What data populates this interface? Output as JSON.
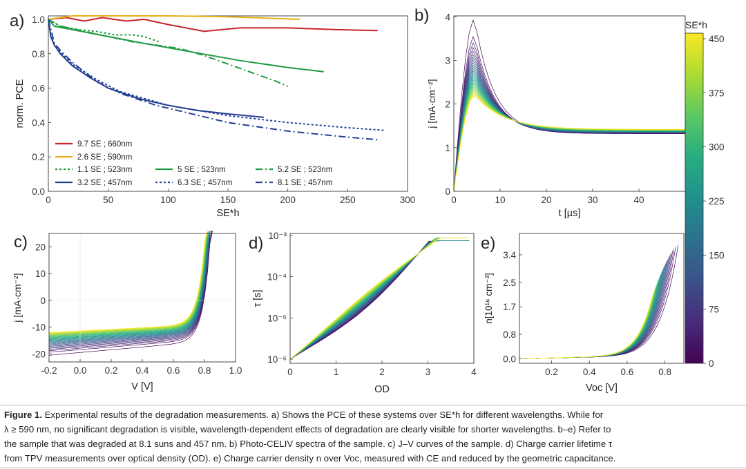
{
  "colors": {
    "red": "#c8232c",
    "yellow": "#e7b016",
    "green": "#1d9b40",
    "blue": "#233f93",
    "colormap": [
      "#440154",
      "#472c7a",
      "#3b518b",
      "#2c718e",
      "#21908d",
      "#27ad81",
      "#5cc863",
      "#aadc32",
      "#fde725"
    ]
  },
  "panel_letters": [
    "a)",
    "b)",
    "c)",
    "d)",
    "e)"
  ],
  "chart_data": [
    {
      "panel": "a",
      "type": "line",
      "xlabel": "SE*h",
      "ylabel": "norm. PCE",
      "xlim": [
        0,
        300
      ],
      "ylim": [
        0,
        1.0
      ],
      "xticks": [
        "0",
        "50",
        "100",
        "150",
        "200",
        "250",
        "300"
      ],
      "yticks": [
        "0.0",
        "0.2",
        "0.4",
        "0.6",
        "0.8",
        "1.0"
      ],
      "series": [
        {
          "name": "9.7 SE ; 660nm",
          "color": "red",
          "style": "solid",
          "x": [
            0,
            15,
            30,
            45,
            65,
            80,
            100,
            130,
            160,
            200,
            240,
            275
          ],
          "y": [
            1.0,
            1.01,
            0.99,
            1.01,
            0.99,
            1.0,
            0.97,
            0.93,
            0.95,
            0.95,
            0.94,
            0.935
          ]
        },
        {
          "name": "2.6 SE ; 590nm",
          "color": "yellow",
          "style": "solid",
          "x": [
            0,
            20,
            50,
            100,
            150,
            210
          ],
          "y": [
            1.0,
            1.02,
            1.02,
            1.02,
            1.015,
            1.0
          ]
        },
        {
          "name": "1.1 SE ; 523nm",
          "color": "green",
          "style": "dot",
          "x": [
            0,
            10,
            25,
            40,
            55,
            70,
            80,
            92
          ],
          "y": [
            1.0,
            0.96,
            0.94,
            0.93,
            0.91,
            0.91,
            0.9,
            0.87
          ]
        },
        {
          "name": "5 SE ; 523nm",
          "color": "green",
          "style": "solid",
          "x": [
            0,
            5,
            20,
            50,
            80,
            120,
            160,
            200,
            230
          ],
          "y": [
            1.0,
            0.96,
            0.94,
            0.9,
            0.86,
            0.81,
            0.76,
            0.72,
            0.695
          ]
        },
        {
          "name": "5.2 SE ; 523nm",
          "color": "green",
          "style": "dashdot",
          "x": [
            0,
            10,
            30,
            50,
            70,
            90,
            110,
            130,
            150,
            170,
            190,
            200
          ],
          "y": [
            1.0,
            0.96,
            0.93,
            0.9,
            0.87,
            0.85,
            0.83,
            0.79,
            0.74,
            0.69,
            0.64,
            0.61
          ]
        },
        {
          "name": "3.2 SE ; 457nm",
          "color": "blue",
          "style": "solid",
          "x": [
            0,
            2,
            5,
            10,
            20,
            35,
            50,
            75,
            100,
            125,
            150,
            180
          ],
          "y": [
            1.0,
            0.9,
            0.85,
            0.8,
            0.73,
            0.66,
            0.6,
            0.54,
            0.5,
            0.47,
            0.45,
            0.43
          ]
        },
        {
          "name": "6.3 SE ; 457nm",
          "color": "blue",
          "style": "dot",
          "x": [
            0,
            2,
            5,
            10,
            20,
            40,
            60,
            100,
            150,
            200,
            250,
            280
          ],
          "y": [
            1.0,
            0.9,
            0.85,
            0.81,
            0.74,
            0.65,
            0.58,
            0.5,
            0.44,
            0.4,
            0.37,
            0.355
          ]
        },
        {
          "name": "8.1 SE ; 457nm",
          "color": "blue",
          "style": "dashdot",
          "x": [
            0,
            5,
            10,
            20,
            40,
            60,
            90,
            120,
            150,
            200,
            250,
            275
          ],
          "y": [
            1.0,
            0.86,
            0.82,
            0.75,
            0.64,
            0.57,
            0.5,
            0.45,
            0.4,
            0.35,
            0.315,
            0.3
          ]
        }
      ]
    },
    {
      "panel": "b",
      "type": "line",
      "xlabel": "t [µs]",
      "ylabel": "j [mA·cm⁻²]",
      "xlim": [
        0,
        50
      ],
      "ylim": [
        0,
        4
      ],
      "xticks": [
        "0",
        "10",
        "20",
        "30",
        "40"
      ],
      "yticks": [
        "0",
        "1",
        "2",
        "3",
        "4"
      ],
      "family": {
        "se_range": [
          0,
          450
        ],
        "count": 30,
        "peak_time": 4.5,
        "peak_range": [
          3.95,
          2.2
        ],
        "tail_range": [
          1.32,
          1.42
        ]
      },
      "colorbar": {
        "label": "SE*h",
        "ticks": [
          "0",
          "75",
          "150",
          "225",
          "300",
          "375",
          "450"
        ],
        "range": [
          0,
          450
        ]
      }
    },
    {
      "panel": "c",
      "type": "line",
      "xlabel": "V [V]",
      "ylabel": "j [mA·cm⁻²]",
      "xlim": [
        -0.2,
        1.0
      ],
      "ylim": [
        -23,
        25
      ],
      "xticks": [
        "-0.2",
        "0.0",
        "0.2",
        "0.4",
        "0.6",
        "0.8",
        "1.0"
      ],
      "yticks": [
        "-20",
        "-10",
        "0",
        "10",
        "20"
      ],
      "family": {
        "count": 30,
        "jsc_range": [
          -20.5,
          -12
        ],
        "voc_range": [
          0.77,
          0.72
        ]
      }
    },
    {
      "panel": "d",
      "type": "line",
      "xlabel": "OD",
      "ylabel": "τ [s]",
      "yscale": "log",
      "xlim": [
        0,
        4
      ],
      "ylim": [
        -6.1,
        -2.95
      ],
      "xticks": [
        "0",
        "1",
        "2",
        "3",
        "4"
      ],
      "yticks": [
        "10⁻⁶",
        "10⁻⁵",
        "10⁻⁴",
        "10⁻³"
      ],
      "family": {
        "count": 30,
        "start_log_tau": -6.0,
        "end_log_tau": -3.08,
        "od_end_range": [
          3.9,
          3.85
        ]
      }
    },
    {
      "panel": "e",
      "type": "line",
      "xlabel": "Voc [V]",
      "ylabel": "n[10¹⁶ cm⁻³]",
      "xlim": [
        0.03,
        0.9
      ],
      "ylim": [
        -0.15,
        4.1
      ],
      "xticks": [
        "0.2",
        "0.4",
        "0.6",
        "0.8"
      ],
      "yticks": [
        "0.0",
        "0.8",
        "1.7",
        "2.5",
        "3.4"
      ],
      "family": {
        "count": 30,
        "voc_max_range": [
          0.87,
          0.73
        ],
        "n_max_range": [
          3.6,
          1.85
        ]
      }
    }
  ],
  "caption": {
    "label": "Figure 1.",
    "line1": "Experimental results of the degradation measurements. a) Shows the PCE of these systems over SE*h for different wavelengths. While for",
    "line2": "λ ≥ 590 nm, no significant degradation is visible, wavelength-dependent effects of degradation are clearly visible for shorter wavelengths. b–e) Refer to",
    "line3": "the sample that was degraded at 8.1 suns and 457 nm. b) Photo-CELIV spectra of the sample. c) J–V curves of the sample. d) Charge carrier lifetime τ",
    "line4": "from TPV measurements over optical density (OD). e) Charge carrier density n over Voc, measured with CE and reduced by the geometric capacitance."
  }
}
